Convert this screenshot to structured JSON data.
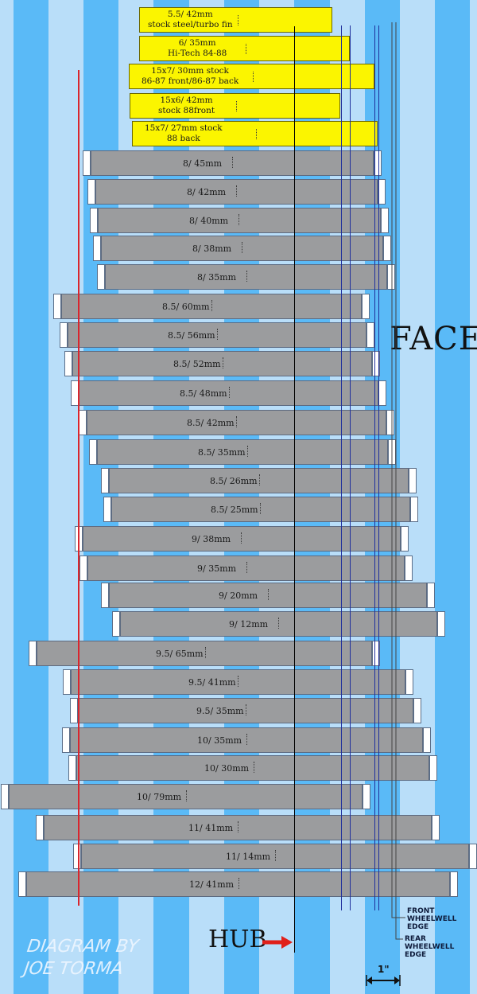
{
  "colors": {
    "stripe_dark": "#5abaf7",
    "stripe_light": "#b9def9",
    "rim_gray": "#9b9c9e",
    "yellow": "#fbf500",
    "red_line": "#d9252d",
    "blue_line": "#1f2f9c",
    "hub_line": "#000000"
  },
  "stock_wheels": [
    {
      "line1": "5.5/ 42mm",
      "line2": "stock steel/turbo fin"
    },
    {
      "line1": "6/ 35mm",
      "line2": "Hi-Tech 84-88"
    },
    {
      "line1": "15x7/ 30mm stock",
      "line2": "86-87 front/86-87 back"
    },
    {
      "line1": "15x6/ 42mm",
      "line2": "stock 88front"
    },
    {
      "line1": "15x7/ 27mm stock",
      "line2": "88 back"
    }
  ],
  "wheels": [
    {
      "label": "8/ 45mm"
    },
    {
      "label": "8/ 42mm"
    },
    {
      "label": "8/ 40mm"
    },
    {
      "label": "8/ 38mm"
    },
    {
      "label": "8/ 35mm"
    },
    {
      "label": "8.5/ 60mm"
    },
    {
      "label": "8.5/ 56mm"
    },
    {
      "label": "8.5/ 52mm"
    },
    {
      "label": "8.5/ 48mm"
    },
    {
      "label": "8.5/ 42mm"
    },
    {
      "label": "8.5/ 35mm"
    },
    {
      "label": "8.5/ 26mm"
    },
    {
      "label": "8.5/ 25mm"
    },
    {
      "label": "9/ 38mm"
    },
    {
      "label": "9/ 35mm"
    },
    {
      "label": "9/ 20mm"
    },
    {
      "label": "9/ 12mm"
    },
    {
      "label": "9.5/ 65mm"
    },
    {
      "label": "9.5/ 41mm"
    },
    {
      "label": "9.5/ 35mm"
    },
    {
      "label": "10/ 35mm"
    },
    {
      "label": "10/ 30mm"
    },
    {
      "label": "10/ 79mm"
    },
    {
      "label": "11/ 41mm"
    },
    {
      "label": "11/ 14mm"
    },
    {
      "label": "12/ 41mm"
    }
  ],
  "labels": {
    "face": "FACE",
    "hub": "HUB",
    "front_edge": [
      "FRONT",
      "WHEELWELL",
      "EDGE"
    ],
    "rear_edge": [
      "REAR",
      "WHEELWELL",
      "EDGE"
    ],
    "scale": "1\"",
    "credit": [
      "DIAGRAM BY",
      "JOE TORMA"
    ]
  }
}
